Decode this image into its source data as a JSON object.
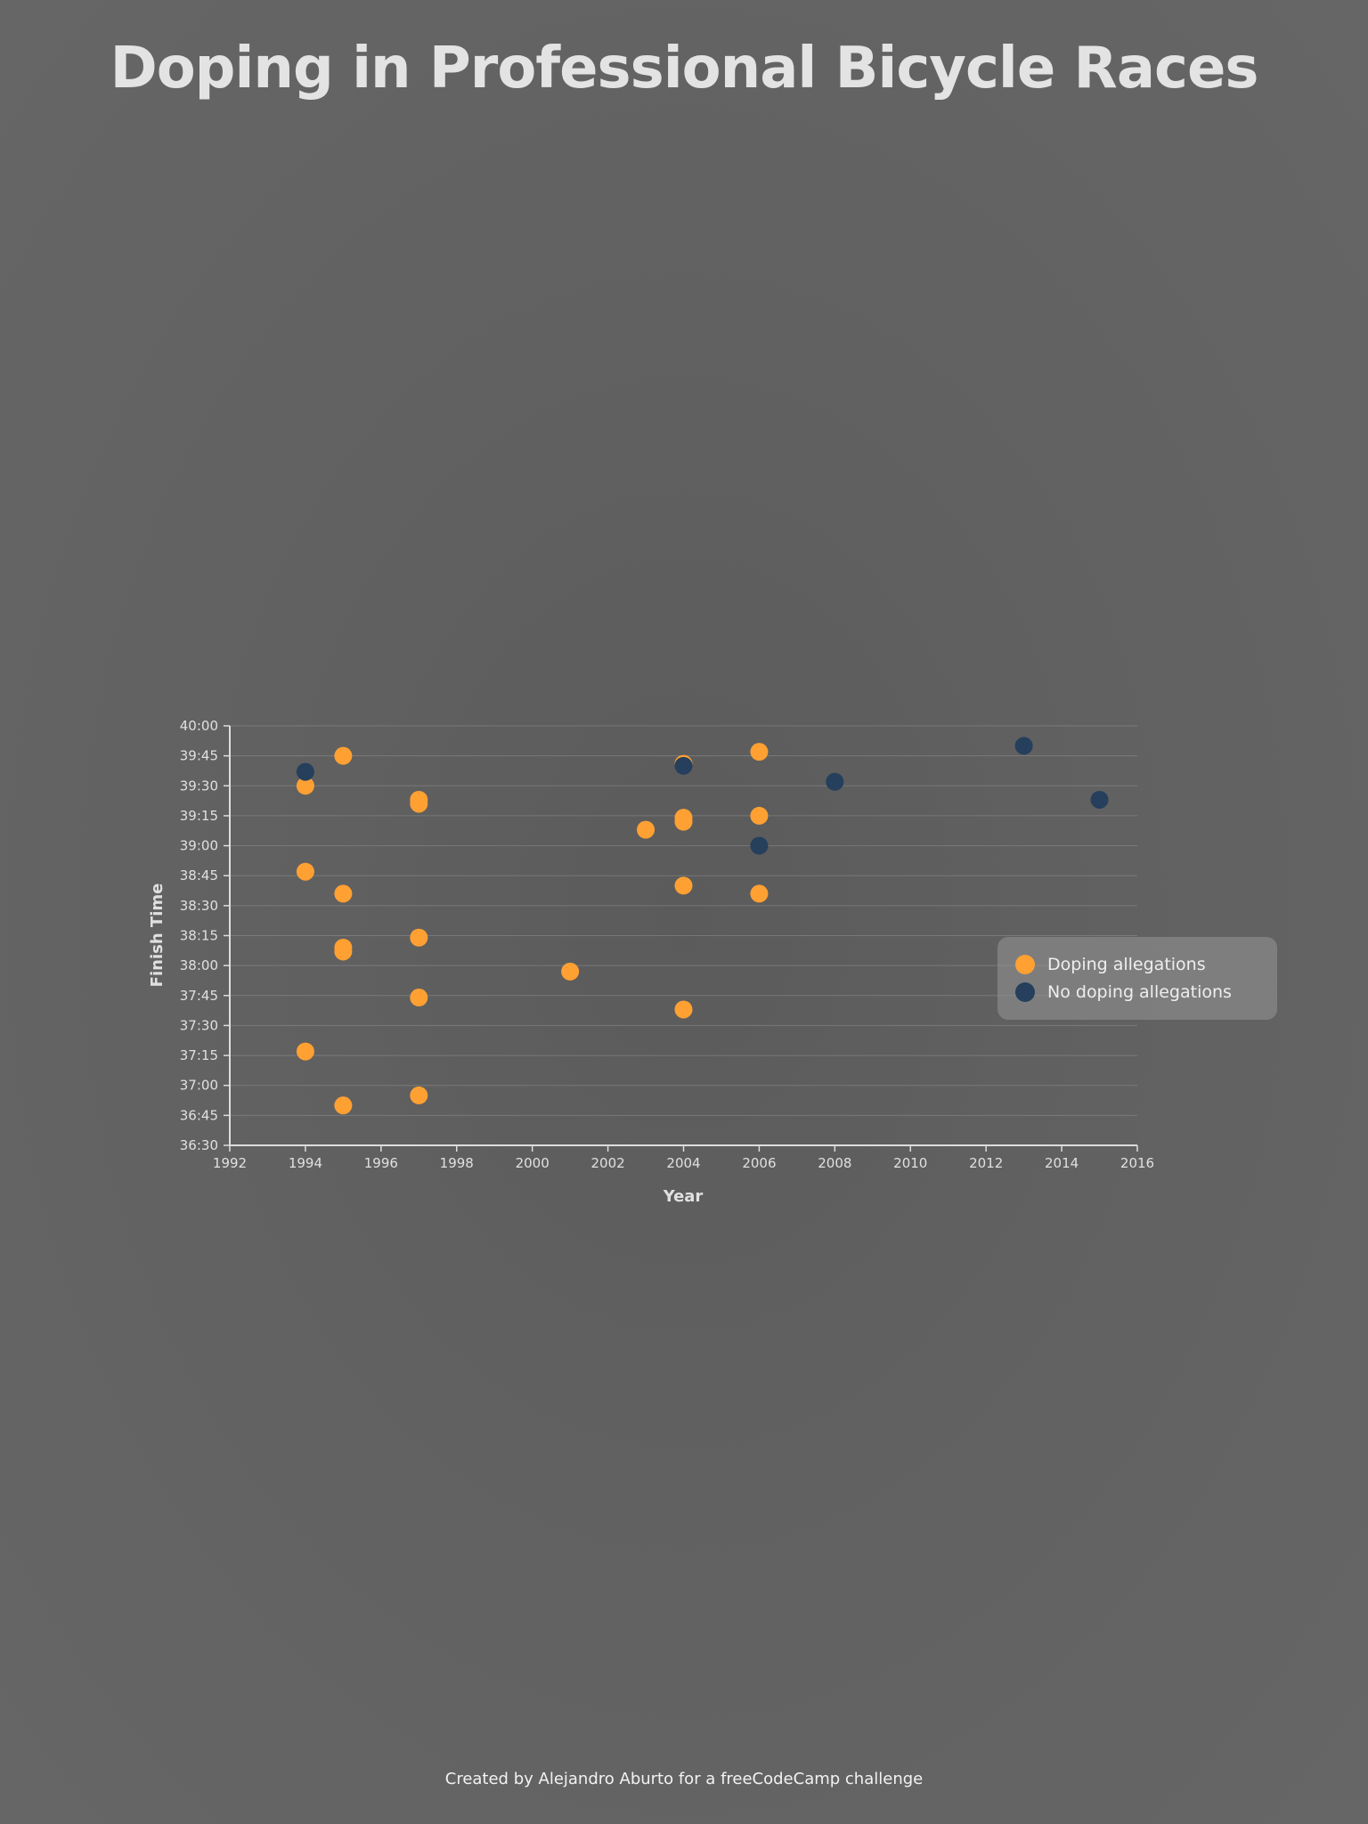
{
  "title": "Doping in Professional Bicycle Races",
  "footer": "Created by Alejandro Aburto for a freeCodeCamp challenge",
  "legend": {
    "items": [
      {
        "label": "Doping allegations",
        "color": "#ffa033"
      },
      {
        "label": "No doping allegations",
        "color": "#253f5c"
      }
    ]
  },
  "chart_data": {
    "type": "scatter",
    "title": "Doping in Professional Bicycle Races",
    "xlabel": "Year",
    "ylabel": "Finish Time",
    "xlim": [
      1992,
      2016
    ],
    "ylim": [
      "36:30",
      "40:00"
    ],
    "y_reversed": true,
    "x_ticks": [
      "1992",
      "1994",
      "1996",
      "1998",
      "2000",
      "2002",
      "2004",
      "2006",
      "2008",
      "2010",
      "2012",
      "2014",
      "2016"
    ],
    "y_ticks": [
      "40:00",
      "39:45",
      "39:30",
      "39:15",
      "39:00",
      "38:45",
      "38:30",
      "38:15",
      "38:00",
      "37:45",
      "37:30",
      "37:15",
      "37:00",
      "36:45",
      "36:30"
    ],
    "grid": "horizontal",
    "legend_position": "right",
    "series": [
      {
        "name": "Doping allegations",
        "color": "#ffa033",
        "points": [
          {
            "x": 1995,
            "y": "39:45"
          },
          {
            "x": 1994,
            "y": "39:30"
          },
          {
            "x": 1997,
            "y": "39:23"
          },
          {
            "x": 1997,
            "y": "39:21"
          },
          {
            "x": 2004,
            "y": "39:41"
          },
          {
            "x": 2006,
            "y": "39:47"
          },
          {
            "x": 2003,
            "y": "39:08"
          },
          {
            "x": 2004,
            "y": "39:14"
          },
          {
            "x": 2004,
            "y": "39:12"
          },
          {
            "x": 2006,
            "y": "39:15"
          },
          {
            "x": 1994,
            "y": "38:47"
          },
          {
            "x": 1995,
            "y": "38:36"
          },
          {
            "x": 2004,
            "y": "38:40"
          },
          {
            "x": 2006,
            "y": "38:36"
          },
          {
            "x": 1997,
            "y": "38:14"
          },
          {
            "x": 1995,
            "y": "38:09"
          },
          {
            "x": 1995,
            "y": "38:07"
          },
          {
            "x": 2001,
            "y": "37:57"
          },
          {
            "x": 1997,
            "y": "37:44"
          },
          {
            "x": 2004,
            "y": "37:38"
          },
          {
            "x": 1994,
            "y": "37:17"
          },
          {
            "x": 1997,
            "y": "36:55"
          },
          {
            "x": 1995,
            "y": "36:50"
          }
        ]
      },
      {
        "name": "No doping allegations",
        "color": "#253f5c",
        "points": [
          {
            "x": 1994,
            "y": "39:37"
          },
          {
            "x": 2004,
            "y": "39:40"
          },
          {
            "x": 2013,
            "y": "39:50"
          },
          {
            "x": 2008,
            "y": "39:32"
          },
          {
            "x": 2015,
            "y": "39:23"
          },
          {
            "x": 2006,
            "y": "39:00"
          }
        ]
      }
    ]
  }
}
